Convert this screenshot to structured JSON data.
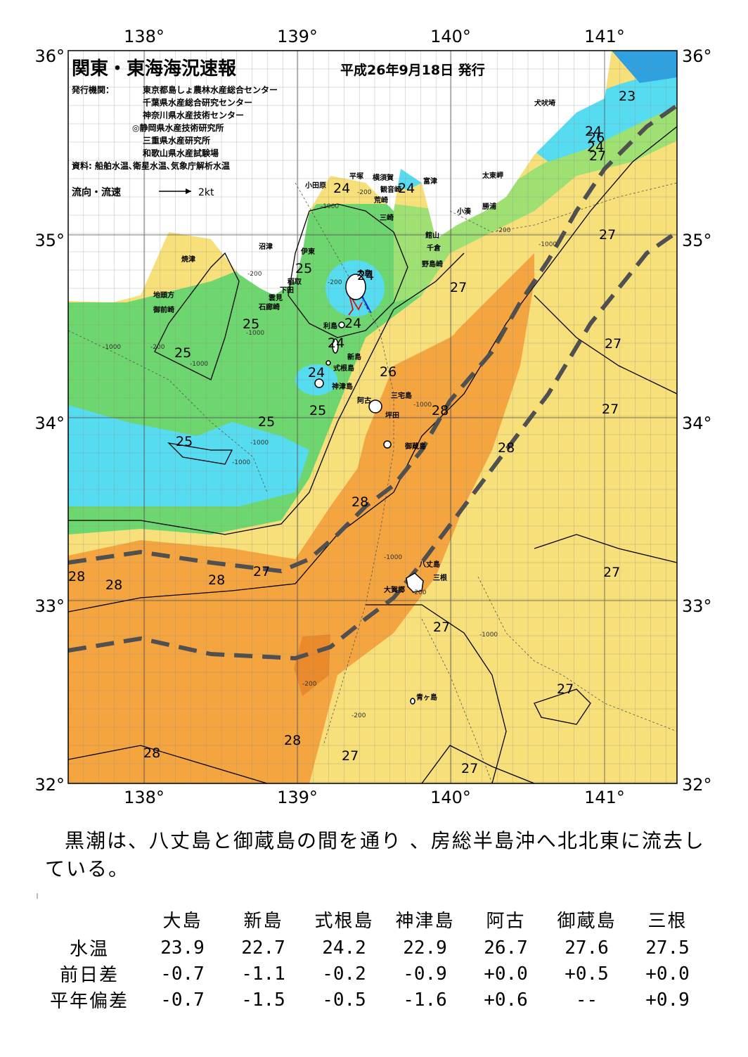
{
  "map": {
    "title": "関東・東海海況速報",
    "issue_date": "平成26年9月18日 発行",
    "issuers_label": "発行機関：",
    "issuers": [
      "東京都島しょ農林水産総合センター",
      "千葉県水産総合研究センター",
      "神奈川県水産技術センター",
      "◎静岡県水産技術研究所",
      "三重県水産研究所",
      "和歌山県水産試験場"
    ],
    "sources": "資料: 船舶水温､衛星水温､気象庁解析水温",
    "flow_legend_label": "流向・流速",
    "flow_legend_value": "2kt",
    "lon_labels": [
      "138°",
      "139°",
      "140°",
      "141°"
    ],
    "lat_labels": [
      "36°",
      "35°",
      "34°",
      "33°",
      "32°"
    ],
    "place_names": [
      "犬吠埼",
      "太東岬",
      "勝浦",
      "小湊",
      "富津",
      "平塚",
      "横須賀",
      "観音崎",
      "荒崎",
      "三崎",
      "館山",
      "千倉",
      "野島崎",
      "小田原",
      "沼津",
      "伊東",
      "稲取",
      "下田",
      "雲見",
      "石廊崎",
      "焼津",
      "地頭方",
      "御前崎",
      "大島",
      "利島",
      "新島",
      "式根島",
      "神津島",
      "三宅島",
      "阿古",
      "坪田",
      "御蔵島",
      "八丈島",
      "三根",
      "大賀郷",
      "青ヶ島"
    ],
    "isotherm_labels": [
      "23",
      "24",
      "24",
      "24",
      "24",
      "24",
      "24",
      "24",
      "24",
      "25",
      "25",
      "25",
      "25",
      "25",
      "25",
      "26",
      "26",
      "27",
      "27",
      "27",
      "27",
      "27",
      "27",
      "27",
      "27",
      "27",
      "27",
      "27",
      "28",
      "28",
      "28",
      "28",
      "28",
      "28",
      "28",
      "28"
    ],
    "depth_labels": [
      "-200",
      "-200",
      "-200",
      "-200",
      "-200",
      "-200",
      "-1000",
      "-1000",
      "-1000",
      "-1000",
      "-1000",
      "-1000",
      "-1000",
      "-1000",
      "-1000",
      "-1000",
      "-200",
      "-200"
    ],
    "colors": {
      "t23": "#2fa0e0",
      "t24": "#56dcf0",
      "t25": "#6ed66e",
      "t26": "#9ee072",
      "t27": "#f7e07a",
      "t28": "#f4a540",
      "t29": "#ea8a2a",
      "kuroshio": "#505050"
    }
  },
  "caption": "黒潮は、八丈島と御蔵島の間を通り 、房総半島沖へ北北東に流去し ている。",
  "table": {
    "columns": [
      "大島",
      "新島",
      "式根島",
      "神津島",
      "阿古",
      "御蔵島",
      "三根"
    ],
    "rows": [
      {
        "label": "水温",
        "values": [
          "23.9",
          "22.7",
          "24.2",
          "22.9",
          "26.7",
          "27.6",
          "27.5"
        ]
      },
      {
        "label": "前日差",
        "values": [
          "-0.7",
          "-1.1",
          "-0.2",
          "-0.9",
          "+0.0",
          "+0.5",
          "+0.0"
        ]
      },
      {
        "label": "平年偏差",
        "values": [
          "-0.7",
          "-1.5",
          "-0.5",
          "-1.6",
          "+0.6",
          "--",
          "+0.9"
        ]
      }
    ]
  }
}
